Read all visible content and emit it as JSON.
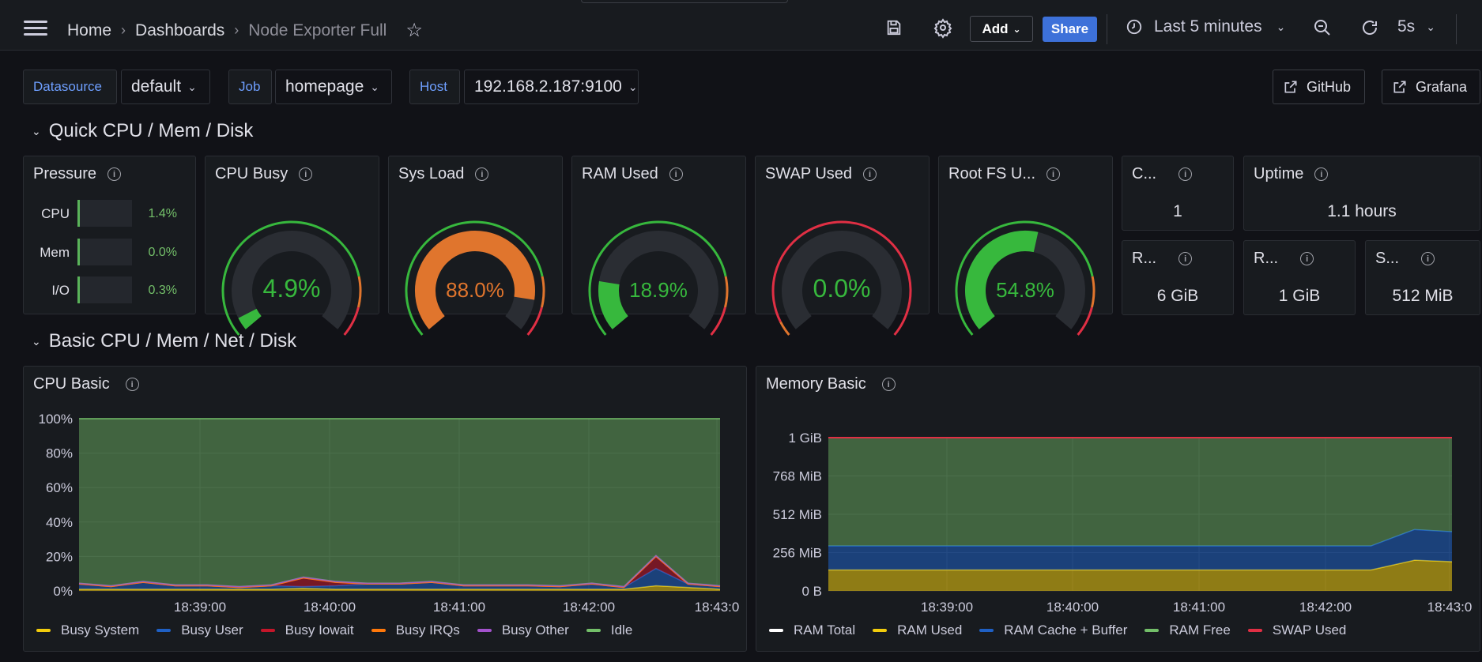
{
  "breadcrumb": {
    "home": "Home",
    "dashboards": "Dashboards",
    "current": "Node Exporter Full"
  },
  "toolbar": {
    "add_label": "Add",
    "share_label": "Share",
    "time_range": "Last 5 minutes",
    "refresh_interval": "5s"
  },
  "variables": {
    "datasource": {
      "label": "Datasource",
      "value": "default"
    },
    "job": {
      "label": "Job",
      "value": "homepage"
    },
    "host": {
      "label": "Host",
      "value": "192.168.2.187:9100"
    }
  },
  "links": {
    "github": "GitHub",
    "grafana": "Grafana"
  },
  "rows": {
    "quick": "Quick CPU / Mem / Disk",
    "basic": "Basic CPU / Mem / Net / Disk"
  },
  "pressure": {
    "title": "Pressure",
    "items": [
      {
        "label": "CPU",
        "value": "1.4%"
      },
      {
        "label": "Mem",
        "value": "0.0%"
      },
      {
        "label": "I/O",
        "value": "0.3%"
      }
    ]
  },
  "gauges": [
    {
      "title": "CPU Busy",
      "value": "4.9%",
      "fraction": 0.049,
      "color": "#37b83d"
    },
    {
      "title": "Sys Load",
      "value": "88.0%",
      "fraction": 0.88,
      "color": "#e0752d"
    },
    {
      "title": "RAM Used",
      "value": "18.9%",
      "fraction": 0.189,
      "color": "#37b83d"
    },
    {
      "title": "SWAP Used",
      "value": "0.0%",
      "fraction": 0.0,
      "color": "#37b83d"
    },
    {
      "title": "Root FS U...",
      "value": "54.8%",
      "fraction": 0.548,
      "color": "#37b83d"
    }
  ],
  "stats": {
    "cores": {
      "title": "C...",
      "value": "1"
    },
    "uptime": {
      "title": "Uptime",
      "value": "1.1 hours"
    },
    "rootfs_total": {
      "title": "R...",
      "value": "6 GiB"
    },
    "ram_total": {
      "title": "R...",
      "value": "1 GiB"
    },
    "swap_total": {
      "title": "S...",
      "value": "512 MiB"
    }
  },
  "colors": {
    "ok": "#73bf69",
    "warn": "#e0752d",
    "accent": "#3d71d9",
    "label": "#6e9fff"
  },
  "chart_data": [
    {
      "type": "area",
      "title": "CPU Basic",
      "x_ticks": [
        "18:39:00",
        "18:40:00",
        "18:41:00",
        "18:42:00",
        "18:43:0"
      ],
      "y_ticks": [
        "100%",
        "80%",
        "60%",
        "40%",
        "20%",
        "0%"
      ],
      "ylim": [
        0,
        100
      ],
      "x": [
        0,
        0.5,
        1,
        1.5,
        2,
        2.5,
        3,
        3.5,
        4,
        4.5,
        5,
        5.5,
        6,
        6.5,
        7,
        7.5,
        8,
        8.5,
        9,
        9.5,
        10
      ],
      "series": [
        {
          "name": "Busy System",
          "color": "#f2cc0c",
          "values": [
            1,
            1,
            1,
            1,
            1,
            1,
            1,
            1.5,
            1,
            1,
            1,
            1,
            1,
            1,
            1,
            1,
            1,
            1,
            3,
            2,
            1
          ]
        },
        {
          "name": "Busy User",
          "color": "#1f60c4",
          "values": [
            3,
            1.5,
            4,
            2,
            2,
            1,
            2,
            1,
            2,
            3,
            3,
            4,
            2,
            2,
            2,
            1.5,
            3,
            1,
            10,
            2,
            1.5
          ]
        },
        {
          "name": "Busy Iowait",
          "color": "#c4162a",
          "values": [
            0,
            0,
            0,
            0,
            0,
            0,
            0,
            5,
            2,
            0,
            0,
            0,
            0,
            0,
            0,
            0,
            0,
            0,
            7,
            0,
            0
          ]
        },
        {
          "name": "Busy IRQs",
          "color": "#ff780a",
          "values": [
            0,
            0,
            0,
            0,
            0,
            0,
            0,
            0,
            0,
            0,
            0,
            0,
            0,
            0,
            0,
            0,
            0,
            0,
            0,
            0,
            0
          ]
        },
        {
          "name": "Busy Other",
          "color": "#a352cc",
          "values": [
            0.5,
            0.5,
            0.5,
            0.5,
            0.5,
            0.5,
            0.5,
            0.5,
            0.5,
            0.5,
            0.5,
            0.5,
            0.5,
            0.5,
            0.5,
            0.5,
            0.5,
            0.5,
            0.5,
            0.5,
            0.5
          ]
        },
        {
          "name": "Idle",
          "color": "#73bf69",
          "values": [
            95.5,
            97,
            94.5,
            96.5,
            96.5,
            97.5,
            96.5,
            92,
            94.5,
            95.5,
            95.5,
            94.5,
            96.5,
            96.5,
            96.5,
            97,
            95.5,
            97.5,
            79.5,
            95.5,
            97
          ]
        }
      ]
    },
    {
      "type": "area",
      "title": "Memory Basic",
      "x_ticks": [
        "18:39:00",
        "18:40:00",
        "18:41:00",
        "18:42:00",
        "18:43:0"
      ],
      "y_ticks": [
        "1 GiB",
        "768 MiB",
        "512 MiB",
        "256 MiB",
        "0 B"
      ],
      "ylim": [
        0,
        1024
      ],
      "x": [
        0,
        1,
        2,
        3,
        4,
        5,
        6,
        7,
        8,
        8.7,
        9.4,
        10
      ],
      "series": [
        {
          "name": "RAM Total",
          "color": "#ffffff",
          "values": [
            1024,
            1024,
            1024,
            1024,
            1024,
            1024,
            1024,
            1024,
            1024,
            1024,
            1024,
            1024
          ]
        },
        {
          "name": "RAM Used",
          "color": "#f2cc0c",
          "values": [
            140,
            140,
            140,
            140,
            140,
            140,
            140,
            140,
            140,
            140,
            205,
            195
          ]
        },
        {
          "name": "RAM Cache + Buffer",
          "color": "#1f60c4",
          "values": [
            160,
            160,
            160,
            160,
            160,
            160,
            160,
            160,
            160,
            160,
            205,
            200
          ]
        },
        {
          "name": "RAM Free",
          "color": "#73bf69",
          "values": [
            724,
            724,
            724,
            724,
            724,
            724,
            724,
            724,
            724,
            724,
            614,
            629
          ]
        },
        {
          "name": "SWAP Used",
          "color": "#e02f44",
          "values": [
            0,
            0,
            0,
            0,
            0,
            0,
            0,
            0,
            0,
            0,
            0,
            0
          ]
        }
      ]
    }
  ]
}
